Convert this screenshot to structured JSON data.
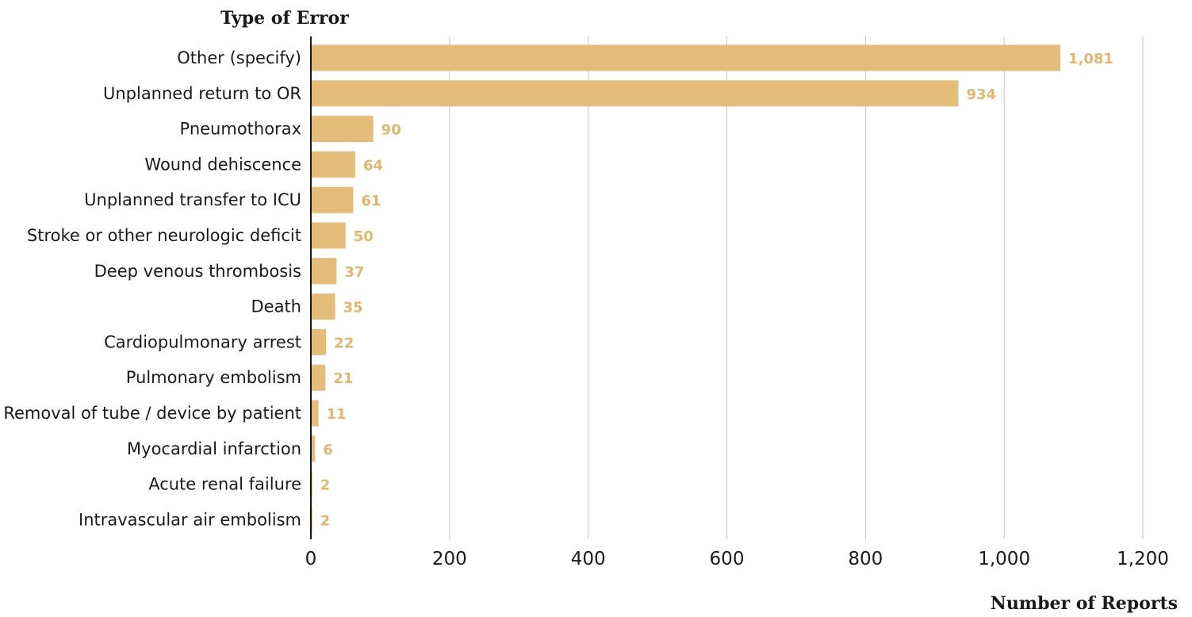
{
  "chart_data": {
    "type": "bar",
    "orientation": "horizontal",
    "title": "",
    "ylabel": "Type of Error",
    "xlabel": "Number of  Reports",
    "categories": [
      "Other (specify)",
      "Unplanned return to OR",
      "Pneumothorax",
      "Wound dehiscence",
      "Unplanned transfer to ICU",
      "Stroke or other neurologic deficit",
      "Deep venous thrombosis",
      "Death",
      "Cardiopulmonary arrest",
      "Pulmonary embolism",
      "Removal of tube / device by patient",
      "Myocardial infarction",
      "Acute renal failure",
      "Intravascular air embolism"
    ],
    "values": [
      1081,
      934,
      90,
      64,
      61,
      50,
      37,
      35,
      22,
      21,
      11,
      6,
      2,
      2
    ],
    "value_labels": [
      "1,081",
      "934",
      "90",
      "64",
      "61",
      "50",
      "37",
      "35",
      "22",
      "21",
      "11",
      "6",
      "2",
      "2"
    ],
    "xlim": [
      0,
      1200
    ],
    "xticks": [
      0,
      200,
      400,
      600,
      800,
      1000,
      1200
    ],
    "xtick_labels": [
      "0",
      "200",
      "400",
      "600",
      "800",
      "1,000",
      "1,200"
    ],
    "grid": "vertical",
    "legend": "none",
    "colors": {
      "bar": "#e4bd78",
      "value_label": "#e0b86c",
      "gridline": "#c4c4c4",
      "axis": "#1a1a1a"
    }
  }
}
